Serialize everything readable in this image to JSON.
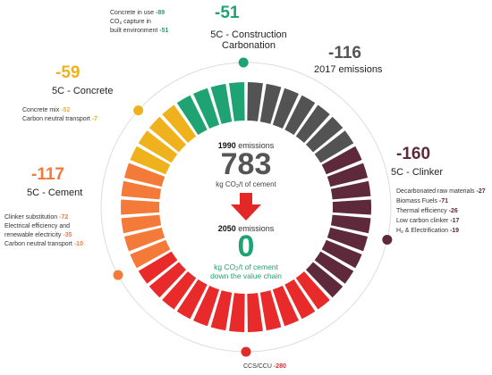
{
  "colors": {
    "construction": "#1fa372",
    "clinker_dark": "#5e2a3b",
    "emissions_grey": "#535353",
    "concrete_yellow": "#f0b21c",
    "cement_orange": "#f47a3a",
    "red": "#e92a2a",
    "ccs_red": "#e02b2b",
    "dark_text": "#222222"
  },
  "construction": {
    "value": "-51",
    "title_line1": "5C - Construction",
    "title_line2": "Carbonation",
    "items": [
      {
        "label": "Concrete in use",
        "value": "-89"
      },
      {
        "label_pre": "CO",
        "label_sub": "2",
        "label_post": " capture in",
        "label_line2": "built environment",
        "value": "-51"
      }
    ]
  },
  "emissions_2017": {
    "value": "-116",
    "label": "2017 emissions"
  },
  "concrete": {
    "value": "-59",
    "title": "5C - Concrete",
    "items": [
      {
        "label": "Concrete mix",
        "value": "-52"
      },
      {
        "label": "Carbon neutral transport",
        "value": "-7"
      }
    ]
  },
  "cement": {
    "value": "-117",
    "title": "5C - Cement",
    "items": [
      {
        "label": "Clinker substitution",
        "value": "-72"
      },
      {
        "label": "Electrical efficiency and",
        "label_line2": "renewable electricity",
        "value": "-35"
      },
      {
        "label": "Carbon neutral transport",
        "value": "-10"
      }
    ]
  },
  "clinker": {
    "value": "-160",
    "title": "5C - Clinker",
    "items": [
      {
        "label": "Decarbonated raw materials",
        "value": "-27"
      },
      {
        "label": "Biomass Fuels",
        "value": "-71"
      },
      {
        "label": "Thermal efficiency",
        "value": "-26"
      },
      {
        "label": "Low carbon clinker",
        "value": "-17"
      },
      {
        "label_pre": "H",
        "label_sub": "2",
        "label_post": " & Electrification",
        "value": "-19"
      }
    ]
  },
  "ccs": {
    "label": "CCS/CCU",
    "value": "-280"
  },
  "center": {
    "year_1990": "1990",
    "emissions_word": "emissions",
    "value_1990": "783",
    "unit_pre": "kg CO",
    "unit_sub": "2",
    "unit_post": "/t of cement",
    "year_2050": "2050",
    "value_2050": "0",
    "unit2_line2": "down the value chain"
  },
  "ring_segments": [
    {
      "color": "#1fa372",
      "count": 4
    },
    {
      "color": "#535353",
      "count": 7
    },
    {
      "color": "#5e2a3b",
      "count": 9
    },
    {
      "color": "#e92a2a",
      "count": 12
    },
    {
      "color": "#f47a3a",
      "count": 6
    },
    {
      "color": "#f0b21c",
      "count": 4
    }
  ]
}
